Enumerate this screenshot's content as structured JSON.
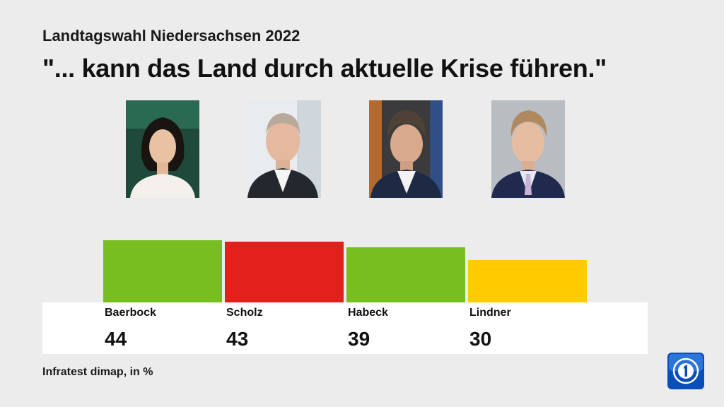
{
  "header": {
    "subtitle": "Landtagswahl Niedersachsen 2022",
    "title": "\"... kann das Land durch aktuelle Krise führen.\""
  },
  "footer": {
    "source": "Infratest dimap, in %"
  },
  "logo": {
    "icon": "ard-das-erste-logo-icon",
    "color": "#0a4fb8"
  },
  "chart_data": {
    "type": "bar",
    "categories": [
      "Baerbock",
      "Scholz",
      "Habeck",
      "Lindner"
    ],
    "values": [
      44,
      43,
      39,
      30
    ],
    "colors": [
      "#78be20",
      "#e2201c",
      "#78be20",
      "#ffcc00"
    ],
    "title": "\"... kann das Land durch aktuelle Krise führen.\"",
    "subtitle": "Landtagswahl Niedersachsen 2022",
    "xlabel": "",
    "ylabel": "",
    "ylim": [
      0,
      50
    ],
    "grid": false,
    "legend": "none",
    "labels": [
      "44",
      "43",
      "39",
      "30"
    ]
  }
}
